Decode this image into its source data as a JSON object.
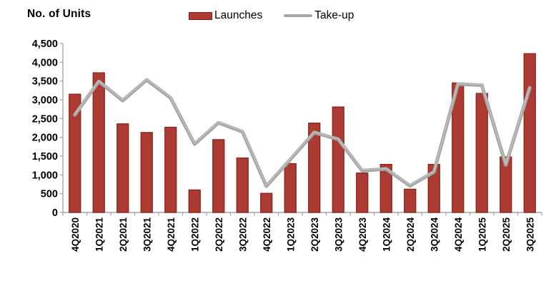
{
  "chart_data": {
    "type": "bar",
    "combo": "bar+line",
    "title": "No. of Units",
    "ylabel": "No. of Units",
    "xlabel": "",
    "ylim": [
      0,
      4500
    ],
    "ytick_step": 500,
    "grid": false,
    "legend_position": "top",
    "categories": [
      "4Q2020",
      "1Q2021",
      "2Q2021",
      "3Q2021",
      "4Q2021",
      "1Q2022",
      "2Q2022",
      "3Q2022",
      "4Q2022",
      "1Q2023",
      "2Q2023",
      "3Q2023",
      "4Q2023",
      "1Q2024",
      "2Q2024",
      "3Q2024",
      "4Q2024",
      "1Q2025",
      "2Q2025",
      "3Q2025"
    ],
    "series": [
      {
        "name": "Launches",
        "type": "bar",
        "color": "#AC3B33",
        "border_color": "#8F1B10",
        "values": [
          3150,
          3720,
          2360,
          2130,
          2270,
          600,
          1940,
          1450,
          510,
          1300,
          2380,
          2810,
          1050,
          1280,
          620,
          1280,
          3450,
          3170,
          1480,
          4230
        ]
      },
      {
        "name": "Take-up",
        "type": "line",
        "color": "#A6A6A6",
        "values": [
          2600,
          3490,
          2980,
          3530,
          3050,
          1820,
          2390,
          2150,
          700,
          1410,
          2130,
          1950,
          1110,
          1160,
          710,
          1080,
          3420,
          3390,
          1270,
          3320
        ]
      }
    ],
    "ytick_labels": [
      "0",
      "500",
      "1,000",
      "1,500",
      "2,000",
      "2,500",
      "3,000",
      "3,500",
      "4,000",
      "4,500"
    ]
  },
  "colors": {
    "axis": "#A6A6A6",
    "text": "#000000",
    "background": "#FFFFFF",
    "line_highlight": "#BDBDBD"
  }
}
